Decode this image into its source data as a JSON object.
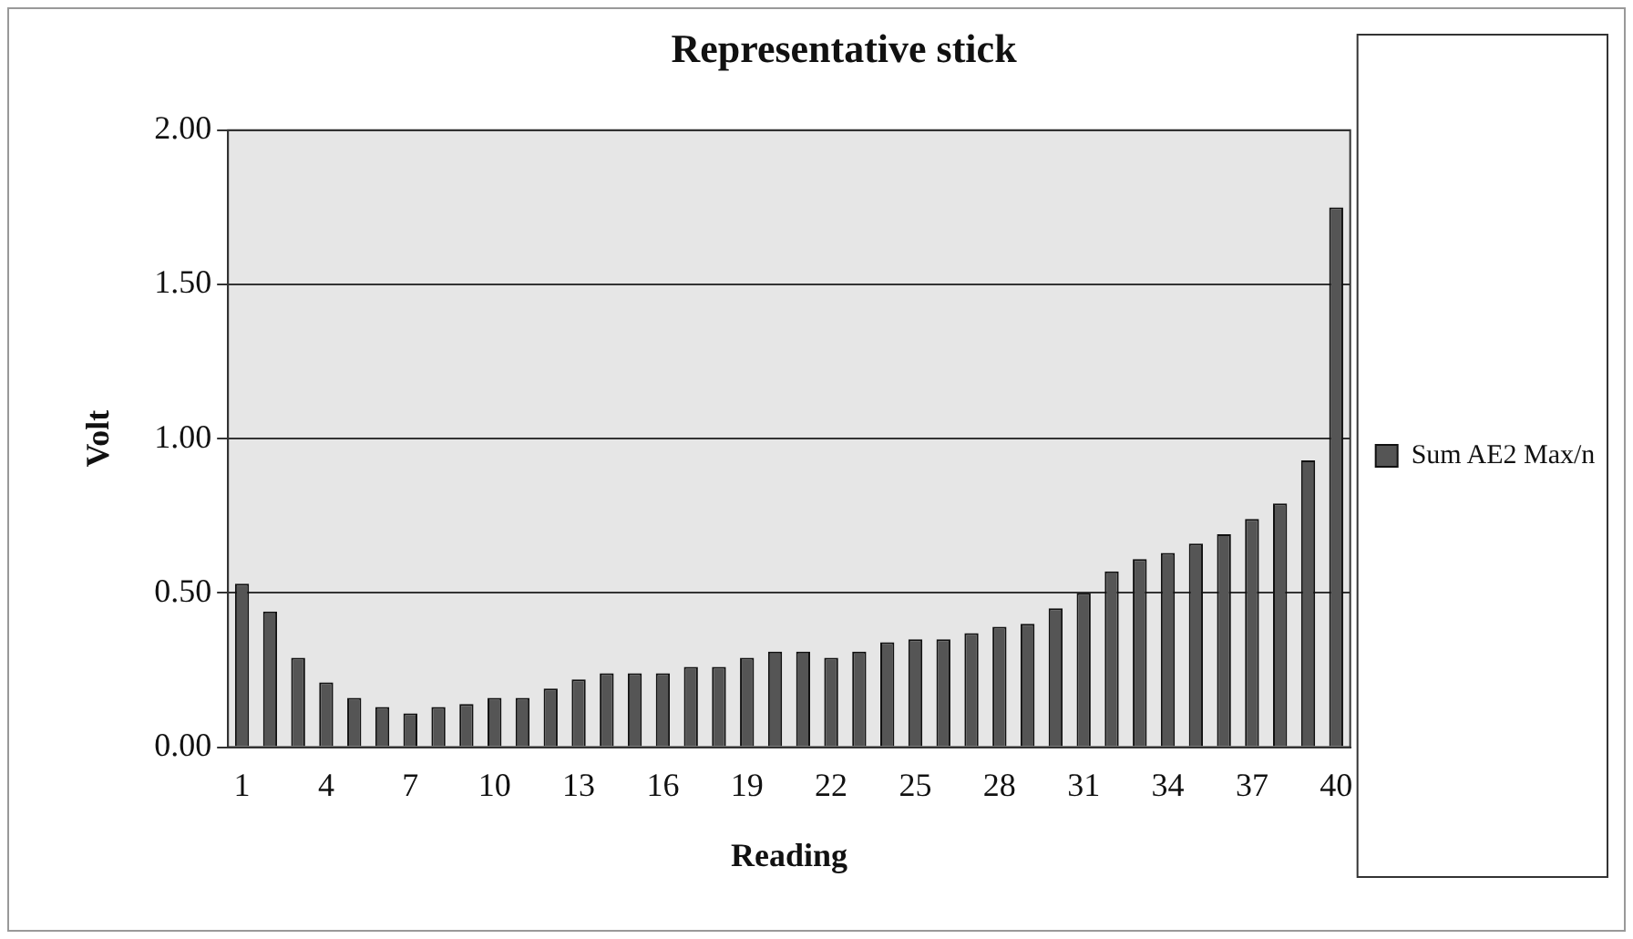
{
  "chart_data": {
    "type": "bar",
    "title": "Representative stick",
    "xlabel": "Reading",
    "ylabel": "Volt",
    "categories": [
      "1",
      null,
      null,
      "4",
      null,
      null,
      "7",
      null,
      null,
      "10",
      null,
      null,
      "13",
      null,
      null,
      "16",
      null,
      null,
      "19",
      null,
      null,
      "22",
      null,
      null,
      "25",
      null,
      null,
      "28",
      null,
      null,
      "31",
      null,
      null,
      "34",
      null,
      null,
      "37",
      null,
      null,
      "40"
    ],
    "series": [
      {
        "name": "Sum AE2 Max/n",
        "color": "#555555",
        "values": [
          0.53,
          0.44,
          0.29,
          0.21,
          0.16,
          0.13,
          0.11,
          0.13,
          0.14,
          0.16,
          0.16,
          0.19,
          0.22,
          0.24,
          0.24,
          0.24,
          0.26,
          0.26,
          0.29,
          0.31,
          0.31,
          0.29,
          0.31,
          0.34,
          0.35,
          0.35,
          0.37,
          0.39,
          0.4,
          0.45,
          0.5,
          0.57,
          0.61,
          0.63,
          0.66,
          0.69,
          0.74,
          0.79,
          0.93,
          1.75
        ]
      }
    ],
    "ylim": [
      0,
      2
    ],
    "yticks": [
      {
        "value": 0,
        "label": "0.00"
      },
      {
        "value": 0.5,
        "label": "0.50"
      },
      {
        "value": 1,
        "label": "1.00"
      },
      {
        "value": 1.5,
        "label": "1.50"
      },
      {
        "value": 2,
        "label": "2.00"
      }
    ],
    "grid": "y",
    "legend": "right"
  }
}
